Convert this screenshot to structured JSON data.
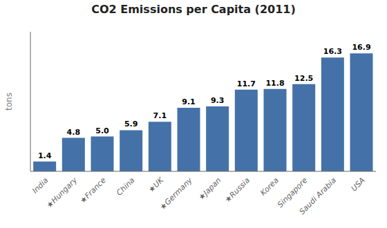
{
  "chart_data": {
    "type": "bar",
    "title": "CO2 Emissions per Capita (2011)",
    "ylabel": "tons",
    "categories": [
      "India",
      "★Hungary",
      "★France",
      "China",
      "★UK",
      "★Germany",
      "★Japan",
      "★Russia",
      "Korea",
      "Singapore",
      "Saudi Arabia",
      "USA"
    ],
    "values": [
      1.4,
      4.8,
      5.0,
      5.9,
      7.1,
      9.1,
      9.3,
      11.7,
      11.8,
      12.5,
      16.3,
      16.9
    ],
    "value_labels": [
      "1.4",
      "4.8",
      "5.0",
      "5.9",
      "7.1",
      "9.1",
      "9.3",
      "11.7",
      "11.8",
      "12.5",
      "16.3",
      "16.9"
    ],
    "color": "#4472a8",
    "ylim": [
      0,
      20
    ],
    "yticks": [],
    "grid": false,
    "data_labels": true,
    "tick_labels": "x"
  }
}
